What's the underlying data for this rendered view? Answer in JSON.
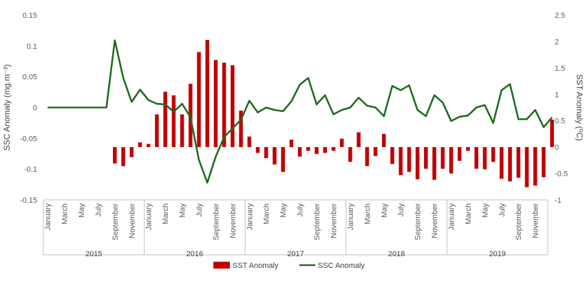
{
  "chart_data": {
    "type": "bar+line",
    "title": "",
    "ylabel_left": "SSC Anomaly (mg.m⁻³)",
    "ylabel_right": "SST Anomaly (⁰C)",
    "ylim_left": [
      -0.15,
      0.15
    ],
    "ylim_right": [
      -1,
      2.5
    ],
    "left_ticks": [
      "0.15",
      "0.1",
      "0.05",
      "0",
      "-0.05",
      "-0.1",
      "-0.15"
    ],
    "right_ticks": [
      "2.5",
      "2",
      "1.5",
      "1",
      "0.5",
      "0",
      "-0.5",
      "-1"
    ],
    "years": [
      "2015",
      "2016",
      "2017",
      "2018",
      "2019"
    ],
    "month_labels": [
      "January",
      "March",
      "May",
      "July",
      "September",
      "November"
    ],
    "series": [
      {
        "name": "SST Anomaly",
        "kind": "bar",
        "axis": "right",
        "color": "#C00000",
        "values": [
          null,
          null,
          null,
          null,
          null,
          null,
          null,
          null,
          -0.31,
          -0.36,
          -0.19,
          0.09,
          0.06,
          0.62,
          1.05,
          0.98,
          0.62,
          1.2,
          1.8,
          2.03,
          1.65,
          1.6,
          1.55,
          0.69,
          0.2,
          -0.11,
          -0.21,
          -0.33,
          -0.47,
          0.14,
          -0.18,
          -0.07,
          -0.13,
          -0.11,
          -0.07,
          0.16,
          -0.28,
          0.28,
          -0.36,
          -0.17,
          0.25,
          -0.32,
          -0.53,
          -0.47,
          -0.61,
          -0.41,
          -0.62,
          -0.41,
          -0.5,
          -0.26,
          -0.07,
          -0.41,
          -0.42,
          -0.28,
          -0.6,
          -0.65,
          -0.58,
          -0.76,
          -0.73,
          -0.57,
          0.52
        ]
      },
      {
        "name": "SSC Anomaly",
        "kind": "line",
        "axis": "left",
        "color": "#1F6B1F",
        "values": [
          0,
          0,
          0,
          0,
          0,
          0,
          0,
          0,
          0.109,
          0.048,
          0.009,
          0.029,
          0.012,
          0.006,
          0.005,
          -0.007,
          0.006,
          -0.016,
          -0.085,
          -0.122,
          -0.08,
          -0.048,
          -0.034,
          -0.02,
          0.011,
          -0.008,
          0,
          -0.004,
          -0.006,
          0.01,
          0.037,
          0.048,
          0.005,
          0.02,
          -0.011,
          -0.004,
          0,
          0.016,
          0.003,
          0,
          -0.014,
          0.035,
          0.028,
          0.036,
          -0.004,
          -0.014,
          0.02,
          0.008,
          -0.022,
          -0.015,
          -0.013,
          0,
          0.004,
          -0.025,
          0.028,
          0.038,
          -0.019,
          -0.019,
          -0.004,
          -0.032,
          -0.016
        ]
      }
    ],
    "legend": {
      "placement": "bottom"
    },
    "grid": false
  }
}
